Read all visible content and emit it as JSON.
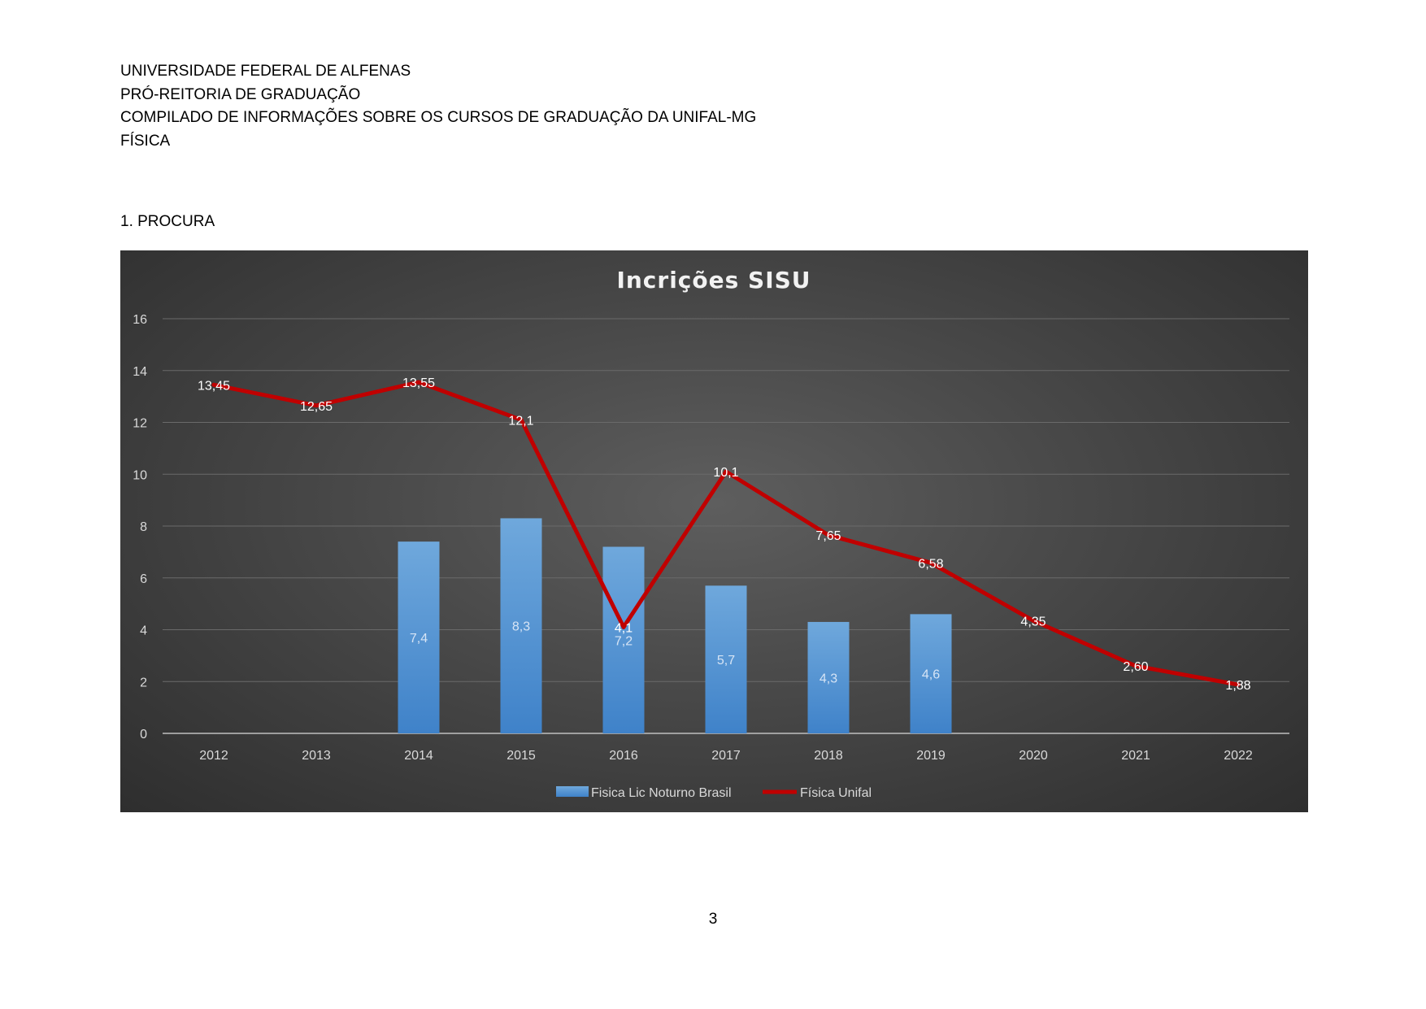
{
  "header": {
    "line1": "UNIVERSIDADE FEDERAL DE ALFENAS",
    "line2": "PRÓ-REITORIA DE GRADUAÇÃO",
    "line3": "COMPILADO DE INFORMAÇÕES SOBRE OS CURSOS DE GRADUAÇÃO DA UNIFAL-MG",
    "line4": "FÍSICA"
  },
  "section": {
    "title": "1. PROCURA"
  },
  "page_number": "3",
  "chart_data": {
    "type": "bar",
    "title": "Incrições SISU",
    "categories": [
      "2012",
      "2013",
      "2014",
      "2015",
      "2016",
      "2017",
      "2018",
      "2019",
      "2020",
      "2021",
      "2022"
    ],
    "ylim": [
      0,
      16
    ],
    "yticks": [
      "0",
      "2",
      "4",
      "6",
      "8",
      "10",
      "12",
      "14",
      "16"
    ],
    "grid": true,
    "legend_position": "bottom",
    "series": [
      {
        "name": "Fisica Lic Noturno Brasil",
        "type": "bar",
        "color": "#5b9bd5",
        "values": [
          null,
          null,
          7.4,
          8.3,
          7.2,
          5.7,
          4.3,
          4.6,
          null,
          null,
          null
        ],
        "labels": [
          "",
          "",
          "7,4",
          "8,3",
          "7,2",
          "5,7",
          "4,3",
          "4,6",
          "",
          "",
          ""
        ]
      },
      {
        "name": "Física Unifal",
        "type": "line",
        "color": "#c00000",
        "values": [
          13.45,
          12.65,
          13.55,
          12.1,
          4.1,
          10.1,
          7.65,
          6.58,
          4.35,
          2.6,
          1.88
        ],
        "labels": [
          "13,45",
          "12,65",
          "13,55",
          "12,1",
          "4,1",
          "10,1",
          "7,65",
          "6,58",
          "4,35",
          "2,60",
          "1,88"
        ]
      }
    ]
  }
}
